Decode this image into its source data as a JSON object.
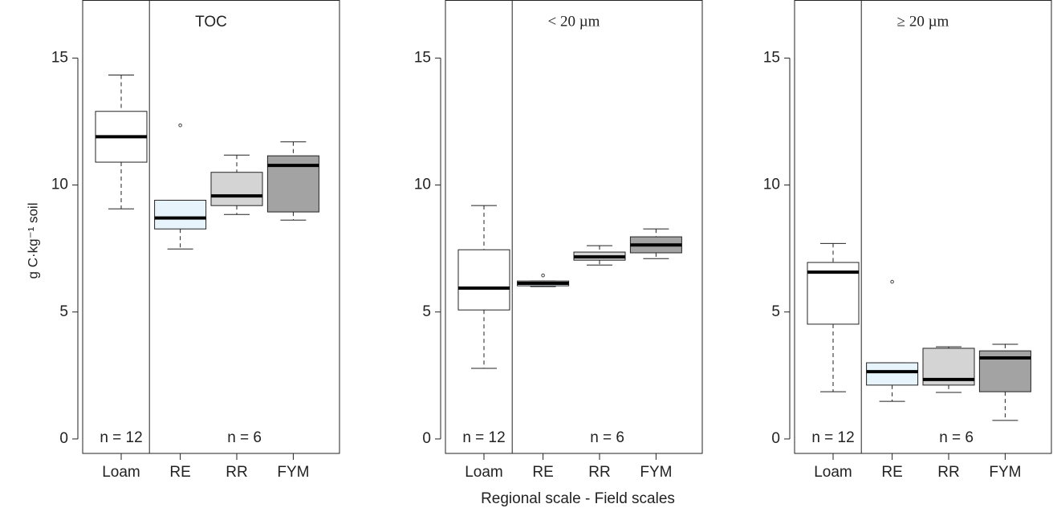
{
  "ylabel": "g C·kg⁻¹ soil",
  "xlabel": "Regional scale - Field scales",
  "chart_data": [
    {
      "type": "box",
      "title": "TOC",
      "categories": [
        "Loam",
        "RE",
        "RR",
        "FYM"
      ],
      "colors": [
        "#ffffff",
        "#e8f4fc",
        "#d4d4d4",
        "#a3a3a3"
      ],
      "boxes": [
        {
          "min": 9.06,
          "q1": 10.9,
          "median": 11.9,
          "q3": 12.9,
          "max": 14.33,
          "outliers": []
        },
        {
          "min": 7.48,
          "q1": 8.27,
          "median": 8.7,
          "q3": 9.4,
          "max": 9.4,
          "outliers": [
            12.35
          ]
        },
        {
          "min": 8.84,
          "q1": 9.19,
          "median": 9.57,
          "q3": 10.5,
          "max": 11.18,
          "outliers": []
        },
        {
          "min": 8.62,
          "q1": 8.94,
          "median": 10.77,
          "q3": 11.15,
          "max": 11.7,
          "outliers": []
        }
      ],
      "annotations": [
        "n = 12",
        "n = 6"
      ],
      "ylim": [
        -0.57,
        17.27
      ],
      "yticks": [
        0,
        5,
        10,
        15
      ]
    },
    {
      "type": "box",
      "title": "< 20 µm",
      "categories": [
        "Loam",
        "RE",
        "RR",
        "FYM"
      ],
      "colors": [
        "#ffffff",
        "#e8f4fc",
        "#d4d4d4",
        "#a3a3a3"
      ],
      "boxes": [
        {
          "min": 2.78,
          "q1": 5.08,
          "median": 5.94,
          "q3": 7.45,
          "max": 9.19,
          "outliers": []
        },
        {
          "min": 6.0,
          "q1": 6.03,
          "median": 6.13,
          "q3": 6.22,
          "max": 6.22,
          "outliers": [
            6.44
          ]
        },
        {
          "min": 6.85,
          "q1": 7.04,
          "median": 7.17,
          "q3": 7.36,
          "max": 7.61,
          "outliers": []
        },
        {
          "min": 7.1,
          "q1": 7.33,
          "median": 7.64,
          "q3": 7.96,
          "max": 8.27,
          "outliers": []
        }
      ],
      "annotations": [
        "n = 12",
        "n = 6"
      ],
      "ylim": [
        -0.57,
        17.27
      ],
      "yticks": [
        0,
        5,
        10,
        15
      ]
    },
    {
      "type": "box",
      "title": "≥ 20 µm",
      "categories": [
        "Loam",
        "RE",
        "RR",
        "FYM"
      ],
      "colors": [
        "#ffffff",
        "#e8f4fc",
        "#d4d4d4",
        "#a3a3a3"
      ],
      "boxes": [
        {
          "min": 1.86,
          "q1": 4.52,
          "median": 6.57,
          "q3": 6.95,
          "max": 7.7,
          "outliers": []
        },
        {
          "min": 1.48,
          "q1": 2.12,
          "median": 2.65,
          "q3": 3.0,
          "max": 3.0,
          "outliers": [
            6.19
          ]
        },
        {
          "min": 1.83,
          "q1": 2.12,
          "median": 2.34,
          "q3": 3.57,
          "max": 3.63,
          "outliers": []
        },
        {
          "min": 0.73,
          "q1": 1.86,
          "median": 3.19,
          "q3": 3.47,
          "max": 3.73,
          "outliers": []
        }
      ],
      "annotations": [
        "n = 12",
        "n = 6"
      ],
      "ylim": [
        -0.57,
        17.27
      ],
      "yticks": [
        0,
        5,
        10,
        15
      ]
    }
  ]
}
